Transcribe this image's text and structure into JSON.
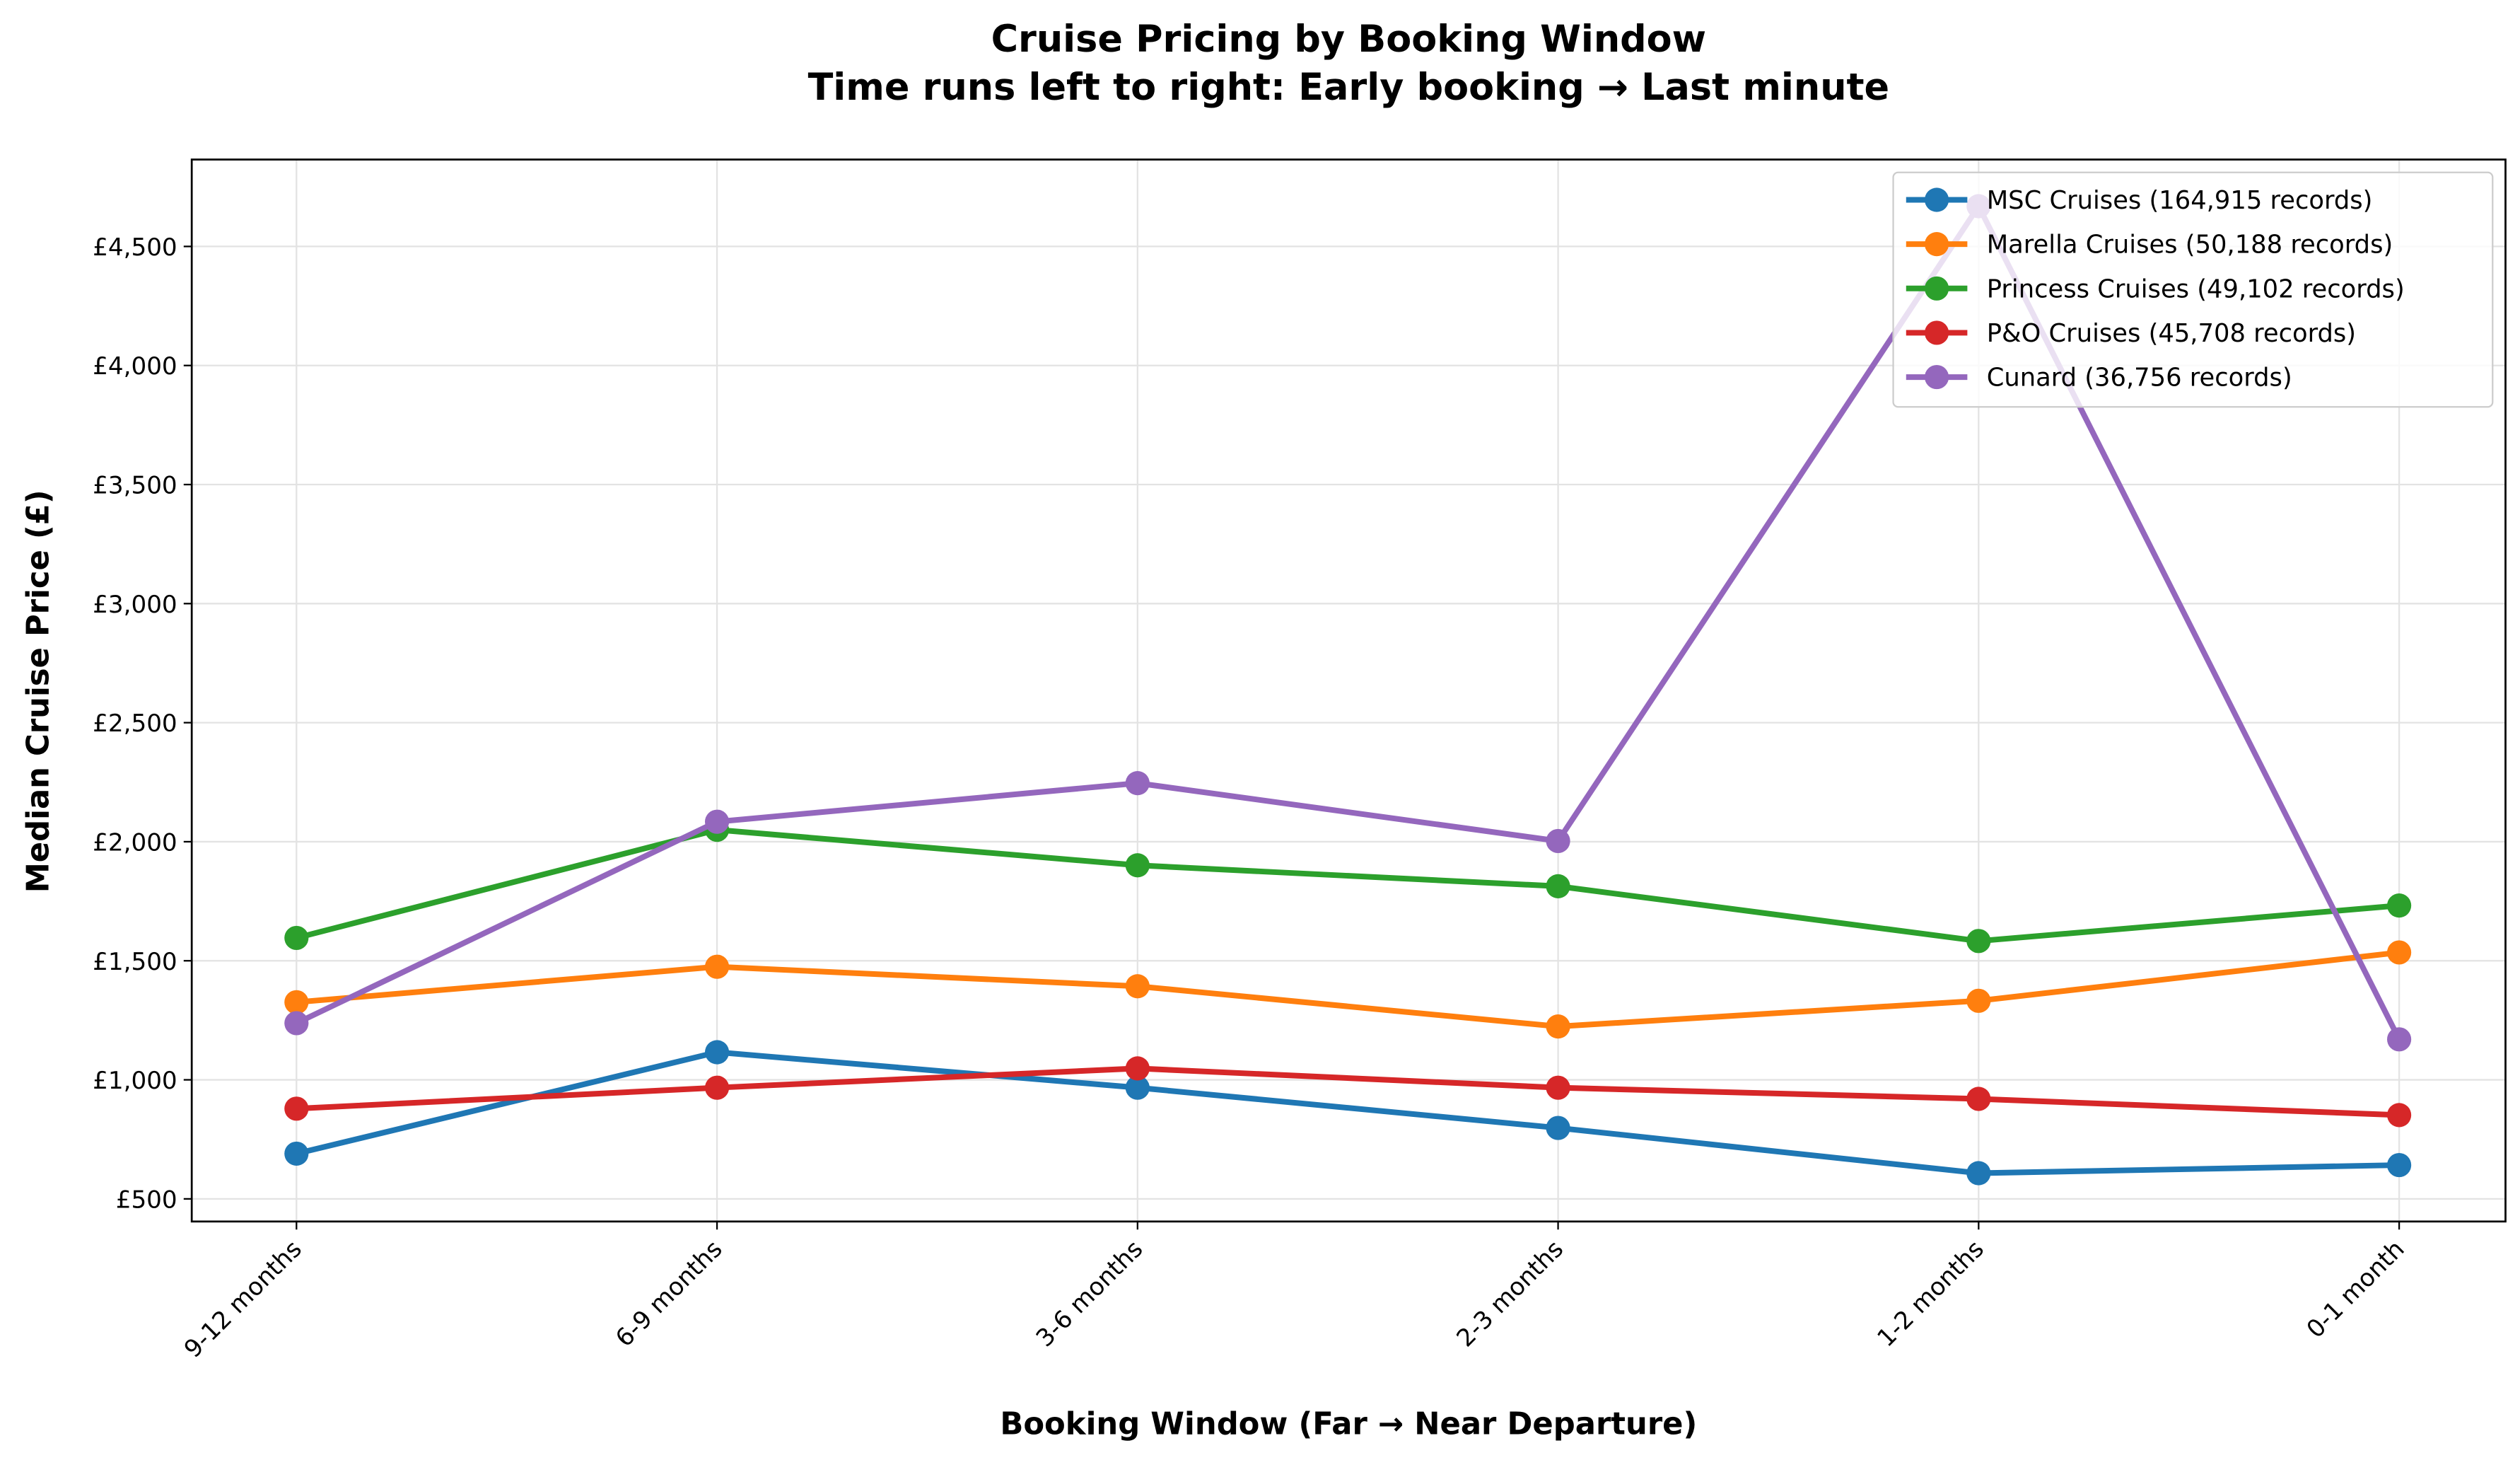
{
  "chart_data": {
    "type": "line",
    "title": "Cruise Pricing by Booking Window",
    "subtitle": "Time runs left to right: Early booking → Last minute",
    "x_label": "Booking Window (Far → Near Departure)",
    "y_label": "Median Cruise Price (£)",
    "categories": [
      "9-12 months",
      "6-9 months",
      "3-6 months",
      "2-3 months",
      "1-2 months",
      "0-1 month"
    ],
    "series": [
      {
        "name": "MSC Cruises (164,915 records)",
        "color": "#1f77b4",
        "values": [
          690,
          1116,
          967,
          798,
          608,
          642
        ]
      },
      {
        "name": "Marella Cruises (50,188 records)",
        "color": "#ff7f0e",
        "values": [
          1326,
          1475,
          1393,
          1224,
          1332,
          1535
        ]
      },
      {
        "name": "Princess Cruises (49,102 records)",
        "color": "#2ca02c",
        "values": [
          1596,
          2050,
          1901,
          1813,
          1583,
          1732
        ]
      },
      {
        "name": "P&O Cruises (45,708 records)",
        "color": "#d62728",
        "values": [
          879,
          967,
          1048,
          967,
          920,
          852
        ]
      },
      {
        "name": "Cunard (36,756 records)",
        "color": "#9467bd",
        "values": [
          1238,
          2084,
          2246,
          2003,
          4669,
          1170
        ]
      }
    ],
    "ylim": [
      405,
      4865
    ],
    "yticks": [
      {
        "value": 500,
        "label": "£500"
      },
      {
        "value": 1000,
        "label": "£1,000"
      },
      {
        "value": 1500,
        "label": "£1,500"
      },
      {
        "value": 2000,
        "label": "£2,000"
      },
      {
        "value": 2500,
        "label": "£2,500"
      },
      {
        "value": 3000,
        "label": "£3,000"
      },
      {
        "value": 3500,
        "label": "£3,500"
      },
      {
        "value": 4000,
        "label": "£4,000"
      },
      {
        "value": 4500,
        "label": "£4,500"
      }
    ],
    "grid": true,
    "legend": "upper right"
  }
}
